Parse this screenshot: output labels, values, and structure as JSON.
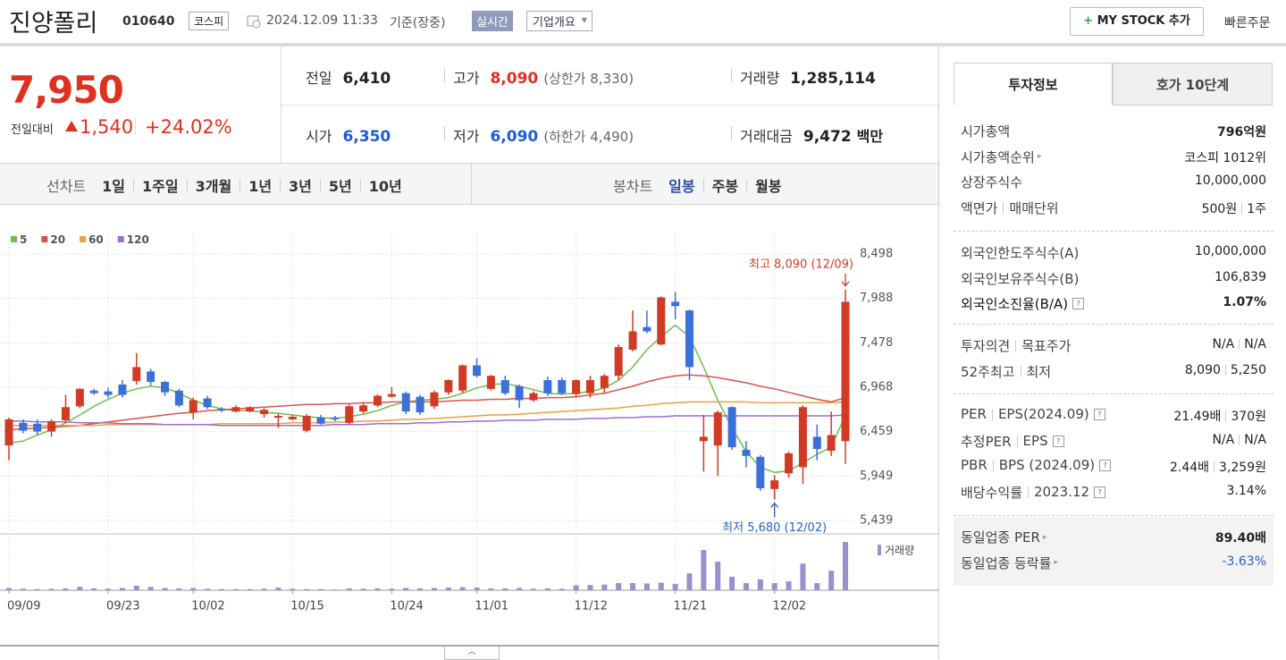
{
  "header": {
    "name": "진양폴리",
    "code": "010640",
    "market": "코스피",
    "datetime": "2024.12.09 11:33",
    "basis": "기준(장중)",
    "realtime": "실시간",
    "company_info": "기업개요",
    "my_stock": "MY STOCK 추가",
    "quick_order": "빠른주문"
  },
  "price": {
    "current": "7,950",
    "change_label": "전일대비",
    "change": "1,540",
    "rate": "+24.02%"
  },
  "quote": [
    {
      "label": "전일",
      "value": "6,410"
    },
    {
      "label": "고가",
      "value": "8,090",
      "color": "#e0301e",
      "sub": "(상한가 8,330)"
    },
    {
      "label": "거래량",
      "value": "1,285,114"
    },
    {
      "label": "시가",
      "value": "6,350",
      "color": "#1f5bd6"
    },
    {
      "label": "저가",
      "value": "6,090",
      "color": "#1f5bd6",
      "sub": "(하한가 4,490)"
    },
    {
      "label": "거래대금",
      "value": "9,472",
      "unit": "백만"
    }
  ],
  "chart_tabs": {
    "line_label": "선차트",
    "line_periods": [
      "1일",
      "1주일",
      "3개월",
      "1년",
      "3년",
      "5년",
      "10년"
    ],
    "candle_label": "봉차트",
    "candle_periods": [
      "일봉",
      "주봉",
      "월봉"
    ]
  },
  "chart_data": {
    "type": "candlestick",
    "up_color": "#d13b25",
    "down_color": "#3b6fd9",
    "categories": [
      "09/09",
      null,
      null,
      null,
      null,
      null,
      null,
      "09/23",
      null,
      null,
      null,
      null,
      null,
      "10/02",
      null,
      null,
      null,
      null,
      null,
      null,
      "10/15",
      null,
      null,
      null,
      null,
      null,
      null,
      "10/24",
      null,
      null,
      null,
      null,
      null,
      "11/01",
      null,
      null,
      null,
      null,
      null,
      null,
      "11/12",
      null,
      null,
      null,
      null,
      null,
      null,
      "11/21",
      null,
      null,
      null,
      null,
      null,
      null,
      "12/02",
      null,
      null,
      null,
      null,
      null
    ],
    "open": [
      6300,
      6560,
      6550,
      6460,
      6590,
      6750,
      6930,
      6920,
      7000,
      7040,
      7150,
      7030,
      6930,
      6680,
      6840,
      6720,
      6690,
      6690,
      6660,
      6620,
      6600,
      6470,
      6620,
      6620,
      6560,
      6690,
      6760,
      6860,
      6900,
      6860,
      6750,
      6910,
      6930,
      7220,
      6950,
      7050,
      6980,
      6820,
      7050,
      7050,
      6890,
      6900,
      6960,
      7100,
      7400,
      7660,
      7460,
      7950,
      7850,
      6350,
      6300,
      6740,
      6250,
      6170,
      5800,
      5980,
      6050,
      6400,
      6240,
      6350
    ],
    "high": [
      6620,
      6600,
      6600,
      6600,
      6880,
      6960,
      6950,
      6960,
      7050,
      7360,
      7180,
      7040,
      6950,
      6850,
      6870,
      6740,
      6760,
      6750,
      6730,
      6670,
      6650,
      6660,
      6650,
      6640,
      6770,
      6790,
      6890,
      6970,
      6920,
      6880,
      6930,
      7060,
      7230,
      7300,
      7110,
      7100,
      7000,
      6920,
      7090,
      7080,
      7060,
      7100,
      7120,
      7460,
      7850,
      7850,
      8010,
      8060,
      7860,
      6650,
      6700,
      6750,
      6350,
      6190,
      5960,
      6230,
      6760,
      6540,
      6690,
      8090
    ],
    "low": [
      6130,
      6440,
      6420,
      6400,
      6560,
      6730,
      6880,
      6850,
      6850,
      7000,
      6990,
      6870,
      6740,
      6600,
      6720,
      6680,
      6680,
      6680,
      6620,
      6500,
      6590,
      6450,
      6540,
      6580,
      6540,
      6670,
      6740,
      6850,
      6660,
      6650,
      6720,
      6880,
      6900,
      7080,
      6930,
      6880,
      6730,
      6800,
      6870,
      6880,
      6860,
      6850,
      6900,
      7050,
      7380,
      7590,
      7450,
      7750,
      7050,
      6000,
      5950,
      6250,
      6050,
      5780,
      5680,
      5930,
      5860,
      6130,
      6180,
      6090
    ],
    "close": [
      6600,
      6470,
      6460,
      6580,
      6740,
      6950,
      6900,
      6880,
      6880,
      7200,
      7030,
      6910,
      6760,
      6820,
      6740,
      6700,
      6740,
      6740,
      6710,
      6640,
      6630,
      6640,
      6550,
      6600,
      6750,
      6760,
      6870,
      6890,
      6690,
      6680,
      6910,
      7050,
      7220,
      7100,
      7100,
      6900,
      6820,
      6900,
      6900,
      6900,
      7050,
      7050,
      7100,
      7430,
      7610,
      7610,
      8000,
      7900,
      7200,
      6400,
      6680,
      6280,
      6180,
      5810,
      5900,
      6210,
      6740,
      6260,
      6420,
      7950
    ],
    "moving_averages": [
      {
        "name": "5",
        "color": "#6cbf4a",
        "values": [
          6330,
          6350,
          6420,
          6480,
          6560,
          6650,
          6750,
          6830,
          6900,
          6950,
          6980,
          6960,
          6900,
          6820,
          6760,
          6720,
          6700,
          6700,
          6680,
          6670,
          6650,
          6630,
          6620,
          6610,
          6630,
          6660,
          6700,
          6760,
          6800,
          6820,
          6830,
          6850,
          6900,
          6960,
          7000,
          7010,
          6980,
          6940,
          6900,
          6890,
          6900,
          6920,
          6960,
          7050,
          7200,
          7400,
          7550,
          7680,
          7550,
          7200,
          6820,
          6500,
          6230,
          6050,
          5990,
          6010,
          6100,
          6200,
          6280,
          6650
        ]
      },
      {
        "name": "20",
        "color": "#d9534f",
        "values": [
          6480,
          6490,
          6500,
          6510,
          6520,
          6530,
          6550,
          6570,
          6590,
          6610,
          6630,
          6650,
          6670,
          6680,
          6700,
          6710,
          6720,
          6730,
          6740,
          6750,
          6760,
          6770,
          6770,
          6780,
          6780,
          6790,
          6790,
          6800,
          6800,
          6800,
          6800,
          6810,
          6820,
          6820,
          6830,
          6830,
          6840,
          6840,
          6850,
          6850,
          6860,
          6880,
          6900,
          6940,
          6980,
          7030,
          7070,
          7100,
          7110,
          7100,
          7080,
          7050,
          7020,
          6980,
          6950,
          6910,
          6870,
          6830,
          6800,
          6850
        ]
      },
      {
        "name": "60",
        "color": "#eea03a",
        "values": [
          6530,
          6530,
          6530,
          6530,
          6530,
          6530,
          6530,
          6540,
          6540,
          6540,
          6540,
          6540,
          6540,
          6540,
          6540,
          6550,
          6550,
          6550,
          6550,
          6550,
          6560,
          6560,
          6560,
          6570,
          6570,
          6580,
          6580,
          6590,
          6600,
          6600,
          6610,
          6620,
          6630,
          6640,
          6650,
          6650,
          6660,
          6670,
          6680,
          6690,
          6700,
          6710,
          6720,
          6730,
          6750,
          6760,
          6780,
          6790,
          6800,
          6800,
          6800,
          6800,
          6800,
          6790,
          6790,
          6790,
          6790,
          6790,
          6790,
          6800
        ]
      },
      {
        "name": "120",
        "color": "#9b6fd0",
        "values": [
          6580,
          6580,
          6570,
          6570,
          6570,
          6560,
          6560,
          6560,
          6550,
          6550,
          6550,
          6540,
          6540,
          6540,
          6540,
          6530,
          6530,
          6530,
          6530,
          6530,
          6530,
          6530,
          6530,
          6540,
          6540,
          6540,
          6550,
          6550,
          6550,
          6560,
          6560,
          6570,
          6570,
          6580,
          6580,
          6590,
          6590,
          6590,
          6600,
          6600,
          6600,
          6610,
          6610,
          6620,
          6620,
          6630,
          6630,
          6640,
          6640,
          6640,
          6640,
          6640,
          6640,
          6640,
          6640,
          6640,
          6640,
          6640,
          6640,
          6650
        ]
      }
    ],
    "volume": {
      "name": "거래량",
      "color": "#9b8fd0",
      "values": [
        60000,
        40000,
        30000,
        40000,
        50000,
        90000,
        50000,
        40000,
        60000,
        120000,
        90000,
        60000,
        50000,
        60000,
        40000,
        30000,
        30000,
        30000,
        40000,
        70000,
        40000,
        30000,
        30000,
        20000,
        50000,
        40000,
        50000,
        40000,
        60000,
        50000,
        60000,
        70000,
        80000,
        70000,
        50000,
        50000,
        60000,
        40000,
        50000,
        40000,
        130000,
        140000,
        150000,
        190000,
        190000,
        180000,
        200000,
        170000,
        450000,
        1070000,
        760000,
        360000,
        190000,
        290000,
        190000,
        240000,
        710000,
        190000,
        520000,
        1285114
      ]
    },
    "ylim": [
      5285,
      8642
    ],
    "yticks": [
      {
        "value": 5439,
        "label": "5,439"
      },
      {
        "value": 5949,
        "label": "5,949"
      },
      {
        "value": 6459,
        "label": "6,459"
      },
      {
        "value": 6968,
        "label": "6,968"
      },
      {
        "value": 7478,
        "label": "7,478"
      },
      {
        "value": 7988,
        "label": "7,988"
      },
      {
        "value": 8498,
        "label": "8,498"
      }
    ],
    "grid": true,
    "annotations": {
      "high": "최고 8,090 (12/09)",
      "low": "최저 5,680 (12/02)"
    }
  },
  "invest_info": {
    "tabs": [
      "투자정보",
      "호가 10단계"
    ],
    "groups": [
      [
        {
          "label": [
            "시가총액"
          ],
          "value": [
            "796억원"
          ]
        },
        {
          "label": [
            "시가총액순위"
          ],
          "value": [
            "코스피 1012위"
          ]
        },
        {
          "label": [
            "상장주식수"
          ],
          "value": [
            "10,000,000"
          ]
        },
        {
          "label": [
            "액면가",
            "매매단위"
          ],
          "value": [
            "500원",
            "1주"
          ]
        }
      ],
      [
        {
          "label": [
            "외국인한도주식수(A)"
          ],
          "value": [
            "10,000,000"
          ]
        },
        {
          "label": [
            "외국인보유주식수(B)"
          ],
          "value": [
            "106,839"
          ]
        },
        {
          "label": [
            "외국인소진율(B/A)"
          ],
          "value": [
            "1.07%"
          ]
        }
      ],
      [
        {
          "label": [
            "투자의견",
            "목표주가"
          ],
          "value": [
            "N/A",
            "N/A"
          ]
        },
        {
          "label": [
            "52주최고",
            "최저"
          ],
          "value": [
            "8,090",
            "5,250"
          ]
        }
      ],
      [
        {
          "label": [
            "PER",
            "EPS(2024.09)"
          ],
          "value": [
            "21.49배",
            "370원"
          ]
        },
        {
          "label": [
            "추정PER",
            "EPS"
          ],
          "value": [
            "N/A",
            "N/A"
          ]
        },
        {
          "label": [
            "PBR",
            "BPS (2024.09)"
          ],
          "value": [
            "2.44배",
            "3,259원"
          ]
        },
        {
          "label": [
            "배당수익률",
            "2023.12"
          ],
          "value": [
            "3.14%"
          ]
        }
      ],
      [
        {
          "label": [
            "동일업종 PER"
          ],
          "value": [
            "89.40배"
          ]
        },
        {
          "label": [
            "동일업종 등락률"
          ],
          "value": [
            "-3.63%"
          ]
        }
      ]
    ]
  }
}
